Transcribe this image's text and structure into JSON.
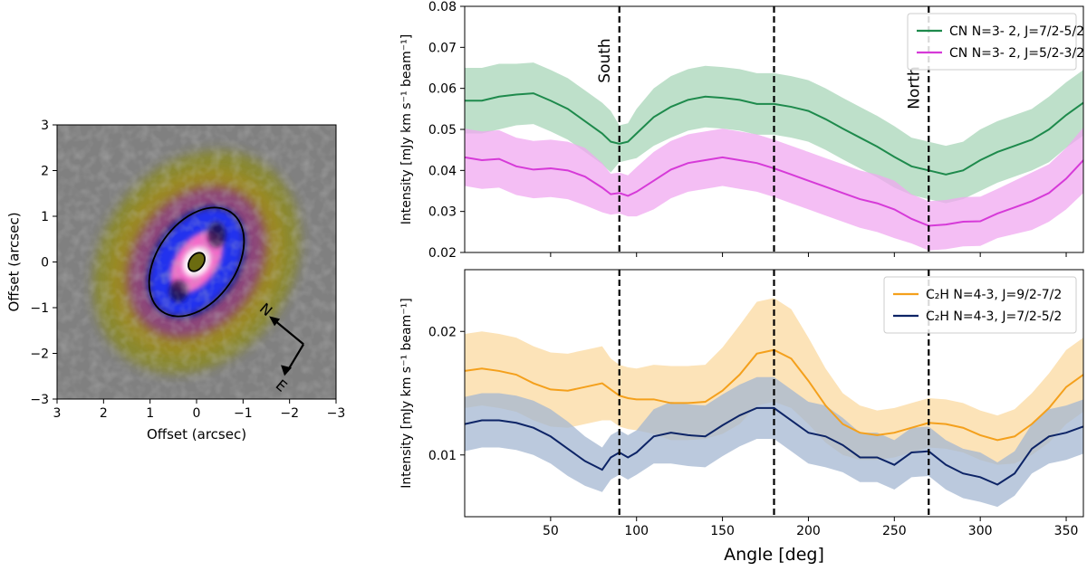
{
  "chart_data": [
    {
      "type": "heatmap",
      "xlabel": "Offset (arcsec)",
      "ylabel": "Offset (arcsec)",
      "xlim": [
        3,
        -3
      ],
      "ylim": [
        -3,
        3
      ],
      "xticks": [
        3,
        2,
        1,
        0,
        -1,
        -2,
        -3
      ],
      "yticks": [
        -3,
        -2,
        -1,
        0,
        1,
        2,
        3
      ],
      "xtick_labels": [
        "3",
        "2",
        "1",
        "0",
        "−1",
        "−2",
        "−3"
      ],
      "ytick_labels": [
        "−3",
        "−2",
        "−1",
        "0",
        "1",
        "2",
        "3"
      ],
      "background_color": "#808080",
      "colormap": [
        "#8a8a2a",
        "#9c8a20",
        "#8a3a8a",
        "#2a2a8a",
        "#2233ee",
        "#ff6ec7",
        "#ffffff"
      ],
      "outer_ellipse": {
        "center": [
          0,
          0
        ],
        "semi_major": 1.3,
        "semi_minor": 0.85,
        "pa_deg": 35
      },
      "inner_ellipse": {
        "center": [
          0,
          0
        ],
        "semi_major": 0.22,
        "semi_minor": 0.15,
        "pa_deg": 35
      },
      "compass": {
        "north_label": "N",
        "east_label": "E"
      }
    },
    {
      "type": "line",
      "ylabel": "Intensity [mJy km s⁻¹ beam⁻¹]",
      "xlim": [
        0,
        360
      ],
      "ylim": [
        0.02,
        0.08
      ],
      "yticks": [
        0.02,
        0.03,
        0.04,
        0.05,
        0.06,
        0.07,
        0.08
      ],
      "ytick_labels": [
        "0.02",
        "0.03",
        "0.04",
        "0.05",
        "0.06",
        "0.07",
        "0.08"
      ],
      "legend": "top-right",
      "vlines": [
        90,
        180,
        270
      ],
      "annotations": [
        {
          "text": "South",
          "x": 90
        },
        {
          "text": "North",
          "x": 270
        }
      ],
      "x": [
        0,
        10,
        20,
        30,
        40,
        50,
        60,
        70,
        80,
        85,
        90,
        95,
        100,
        110,
        120,
        130,
        140,
        150,
        160,
        170,
        180,
        190,
        200,
        210,
        220,
        230,
        240,
        250,
        260,
        270,
        280,
        290,
        300,
        310,
        320,
        330,
        340,
        350,
        360
      ],
      "series": [
        {
          "name": "CN N=3- 2, J=7/2-5/2",
          "color": "#1e8a4c",
          "band_color": "#a8d5b8",
          "values": [
            0.057,
            0.057,
            0.058,
            0.0585,
            0.0588,
            0.057,
            0.055,
            0.052,
            0.049,
            0.047,
            0.0465,
            0.047,
            0.049,
            0.053,
            0.0555,
            0.0572,
            0.058,
            0.0577,
            0.0572,
            0.0562,
            0.0562,
            0.0555,
            0.0545,
            0.0525,
            0.0502,
            0.048,
            0.0458,
            0.0433,
            0.041,
            0.04,
            0.039,
            0.04,
            0.0425,
            0.0445,
            0.046,
            0.0475,
            0.05,
            0.0535,
            0.0565
          ],
          "error": [
            0.008,
            0.008,
            0.008,
            0.0075,
            0.0075,
            0.0075,
            0.0075,
            0.0075,
            0.0075,
            0.0075,
            0.0045,
            0.0045,
            0.006,
            0.007,
            0.0075,
            0.0075,
            0.0075,
            0.0075,
            0.0075,
            0.0075,
            0.0075,
            0.0075,
            0.0075,
            0.0075,
            0.0075,
            0.0075,
            0.0075,
            0.0075,
            0.007,
            0.007,
            0.007,
            0.007,
            0.0075,
            0.0075,
            0.0075,
            0.0075,
            0.008,
            0.008,
            0.008
          ]
        },
        {
          "name": "CN N=3- 2, J=5/2-3/2",
          "color": "#d63ad8",
          "band_color": "#f0a8f0",
          "values": [
            0.0432,
            0.0425,
            0.0428,
            0.041,
            0.0402,
            0.0405,
            0.04,
            0.0385,
            0.0358,
            0.0342,
            0.0345,
            0.0338,
            0.0348,
            0.0375,
            0.0402,
            0.0418,
            0.0425,
            0.0432,
            0.0425,
            0.0418,
            0.0405,
            0.039,
            0.0375,
            0.036,
            0.0345,
            0.033,
            0.032,
            0.0305,
            0.0282,
            0.0265,
            0.0268,
            0.0275,
            0.0276,
            0.0295,
            0.031,
            0.0325,
            0.0345,
            0.038,
            0.0425
          ],
          "error": [
            0.007,
            0.007,
            0.007,
            0.007,
            0.007,
            0.007,
            0.007,
            0.007,
            0.006,
            0.005,
            0.005,
            0.005,
            0.006,
            0.007,
            0.007,
            0.007,
            0.007,
            0.007,
            0.007,
            0.007,
            0.007,
            0.007,
            0.007,
            0.007,
            0.007,
            0.007,
            0.007,
            0.007,
            0.006,
            0.006,
            0.006,
            0.006,
            0.006,
            0.006,
            0.0065,
            0.007,
            0.007,
            0.0075,
            0.008
          ]
        }
      ]
    },
    {
      "type": "line",
      "xlabel": "Angle [deg]",
      "ylabel": "Intensity [mJy km s⁻¹ beam⁻¹]",
      "xlim": [
        0,
        360
      ],
      "xticks": [
        50,
        100,
        150,
        200,
        250,
        300,
        350
      ],
      "xtick_labels": [
        "50",
        "100",
        "150",
        "200",
        "250",
        "300",
        "350"
      ],
      "ylim": [
        0.005,
        0.025
      ],
      "yticks": [
        0.01,
        0.02
      ],
      "ytick_labels": [
        "0.01",
        "0.02"
      ],
      "legend": "top-right",
      "vlines": [
        90,
        180,
        270
      ],
      "x": [
        0,
        10,
        20,
        30,
        40,
        50,
        60,
        70,
        80,
        85,
        90,
        95,
        100,
        110,
        120,
        130,
        140,
        150,
        160,
        170,
        180,
        190,
        200,
        210,
        220,
        230,
        240,
        250,
        260,
        270,
        280,
        290,
        300,
        310,
        320,
        330,
        340,
        350,
        360
      ],
      "series": [
        {
          "name": "C₂H N=4-3, J=9/2-7/2",
          "color": "#f4a01c",
          "band_color": "#fbd9a0",
          "values": [
            0.0168,
            0.017,
            0.0168,
            0.0165,
            0.0158,
            0.0153,
            0.0152,
            0.0155,
            0.0158,
            0.0153,
            0.0148,
            0.0146,
            0.0145,
            0.0145,
            0.0142,
            0.0142,
            0.0143,
            0.0152,
            0.0165,
            0.0182,
            0.0185,
            0.0178,
            0.016,
            0.014,
            0.0125,
            0.0118,
            0.0116,
            0.0118,
            0.0122,
            0.0126,
            0.0125,
            0.0122,
            0.0116,
            0.0112,
            0.0115,
            0.0125,
            0.0138,
            0.0155,
            0.0165
          ],
          "error": [
            0.003,
            0.003,
            0.003,
            0.003,
            0.003,
            0.003,
            0.003,
            0.003,
            0.003,
            0.0025,
            0.0025,
            0.0025,
            0.0025,
            0.0028,
            0.003,
            0.003,
            0.003,
            0.0035,
            0.004,
            0.0042,
            0.0042,
            0.004,
            0.0035,
            0.003,
            0.0025,
            0.0022,
            0.002,
            0.002,
            0.002,
            0.002,
            0.002,
            0.002,
            0.002,
            0.002,
            0.0022,
            0.0025,
            0.0028,
            0.003,
            0.003
          ]
        },
        {
          "name": "C₂H N=4-3, J=7/2-5/2",
          "color": "#0d2466",
          "band_color": "#a4b7d2",
          "values": [
            0.0125,
            0.0128,
            0.0128,
            0.0126,
            0.0122,
            0.0115,
            0.0105,
            0.0095,
            0.0088,
            0.0098,
            0.0102,
            0.0098,
            0.0102,
            0.0115,
            0.0118,
            0.0116,
            0.0115,
            0.0124,
            0.0132,
            0.0138,
            0.0138,
            0.0128,
            0.0118,
            0.0115,
            0.0108,
            0.0098,
            0.0098,
            0.0092,
            0.0102,
            0.0103,
            0.0092,
            0.0085,
            0.0082,
            0.0076,
            0.0085,
            0.0105,
            0.0115,
            0.0118,
            0.0123
          ],
          "error": [
            0.0022,
            0.0022,
            0.0022,
            0.0022,
            0.0022,
            0.0022,
            0.0022,
            0.002,
            0.0018,
            0.0018,
            0.0018,
            0.0018,
            0.0018,
            0.0022,
            0.0025,
            0.0025,
            0.0025,
            0.0025,
            0.0025,
            0.0025,
            0.0025,
            0.0025,
            0.0025,
            0.0025,
            0.0022,
            0.002,
            0.002,
            0.002,
            0.002,
            0.002,
            0.002,
            0.002,
            0.002,
            0.0018,
            0.0018,
            0.002,
            0.0022,
            0.0022,
            0.0022
          ]
        }
      ]
    }
  ]
}
